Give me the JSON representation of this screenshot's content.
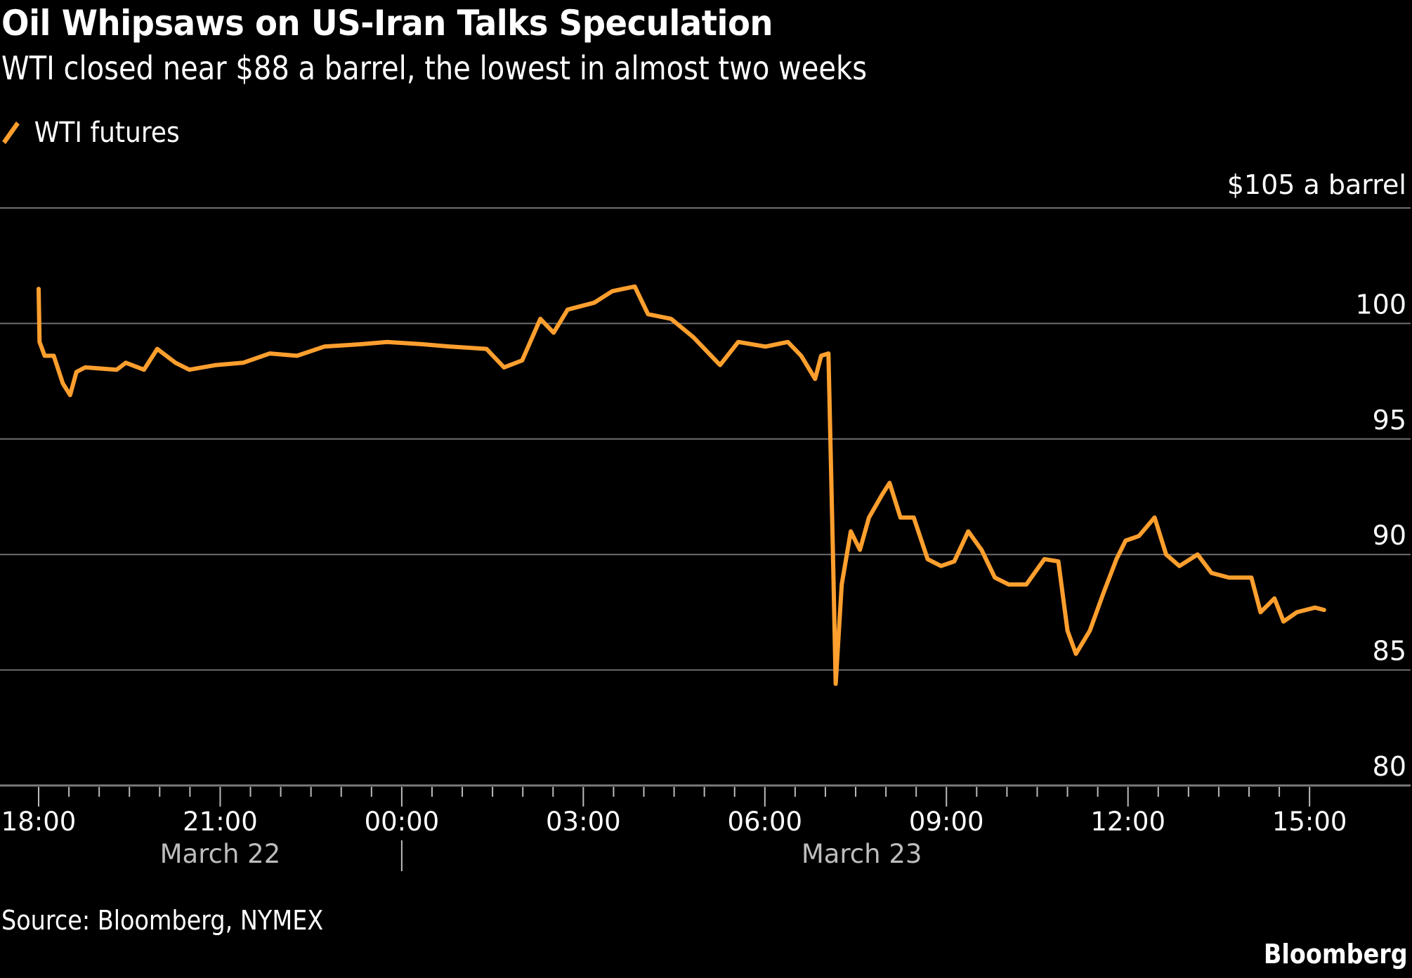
{
  "chart_data": {
    "type": "line",
    "title": "Oil Whipsaws on US-Iran Talks Speculation",
    "subtitle": "WTI closed near $88 a barrel, the lowest in almost two weeks",
    "ylabel": "$105 a barrel",
    "xlabel": "",
    "ylim": [
      80,
      105
    ],
    "yticks": [
      80,
      85,
      90,
      95,
      100
    ],
    "y_unit_label": "$105 a barrel",
    "grid": true,
    "legend": "top-left",
    "x_unit": "hours since 18:00 March 22",
    "xticks": [
      {
        "h": 0,
        "label": "18:00"
      },
      {
        "h": 3,
        "label": "21:00"
      },
      {
        "h": 6,
        "label": "00:00"
      },
      {
        "h": 9,
        "label": "03:00"
      },
      {
        "h": 12,
        "label": "06:00"
      },
      {
        "h": 15,
        "label": "09:00"
      },
      {
        "h": 18,
        "label": "12:00"
      },
      {
        "h": 21,
        "label": "15:00"
      }
    ],
    "date_labels": [
      {
        "h": 3,
        "label": "March 22"
      },
      {
        "h": 13.6,
        "label": "March 23"
      }
    ],
    "date_divider_h": 6,
    "series": [
      {
        "name": "WTI futures",
        "color": "#ff9f2e",
        "x": [
          0,
          0.015,
          0.1,
          0.25,
          0.4,
          0.52,
          0.625,
          0.77,
          1.29,
          1.44,
          1.74,
          1.96,
          2.26,
          2.49,
          2.93,
          3.38,
          3.82,
          4.27,
          4.72,
          5.31,
          5.76,
          6.35,
          6.8,
          7.4,
          7.69,
          7.99,
          8.29,
          8.51,
          8.74,
          9.18,
          9.48,
          9.85,
          10.07,
          10.45,
          10.82,
          11.26,
          11.56,
          12.01,
          12.38,
          12.6,
          12.83,
          12.93,
          13.05,
          13.13,
          13.17,
          13.27,
          13.42,
          13.57,
          13.72,
          13.94,
          14.06,
          14.24,
          14.46,
          14.69,
          14.91,
          15.13,
          15.36,
          15.58,
          15.8,
          16.03,
          16.32,
          16.62,
          16.85,
          17.0,
          17.14,
          17.37,
          17.59,
          17.81,
          17.96,
          18.18,
          18.44,
          18.63,
          18.85,
          19.15,
          19.38,
          19.67,
          20.04,
          20.19,
          20.42,
          20.57,
          20.79,
          21.09,
          21.24
        ],
        "values": [
          101.5,
          99.2,
          98.6,
          98.6,
          97.4,
          96.9,
          97.9,
          98.1,
          98.0,
          98.3,
          98.0,
          98.9,
          98.3,
          98.0,
          98.2,
          98.3,
          98.7,
          98.6,
          99.0,
          99.1,
          99.2,
          99.1,
          99.0,
          98.9,
          98.1,
          98.4,
          100.2,
          99.6,
          100.6,
          100.9,
          101.4,
          101.6,
          100.4,
          100.2,
          99.4,
          98.2,
          99.2,
          99.0,
          99.2,
          98.6,
          97.6,
          98.6,
          98.7,
          89.5,
          84.4,
          88.7,
          91.0,
          90.2,
          91.6,
          92.6,
          93.1,
          91.6,
          91.6,
          89.8,
          89.5,
          89.7,
          91.0,
          90.2,
          89.0,
          88.7,
          88.7,
          89.8,
          89.7,
          86.7,
          85.7,
          86.7,
          88.3,
          89.8,
          90.6,
          90.8,
          91.6,
          90.0,
          89.5,
          90.0,
          89.2,
          89.0,
          89.0,
          87.5,
          88.1,
          87.1,
          87.5,
          87.7,
          87.6
        ]
      }
    ],
    "source": "Source: Bloomberg, NYMEX",
    "brand": "Bloomberg"
  }
}
